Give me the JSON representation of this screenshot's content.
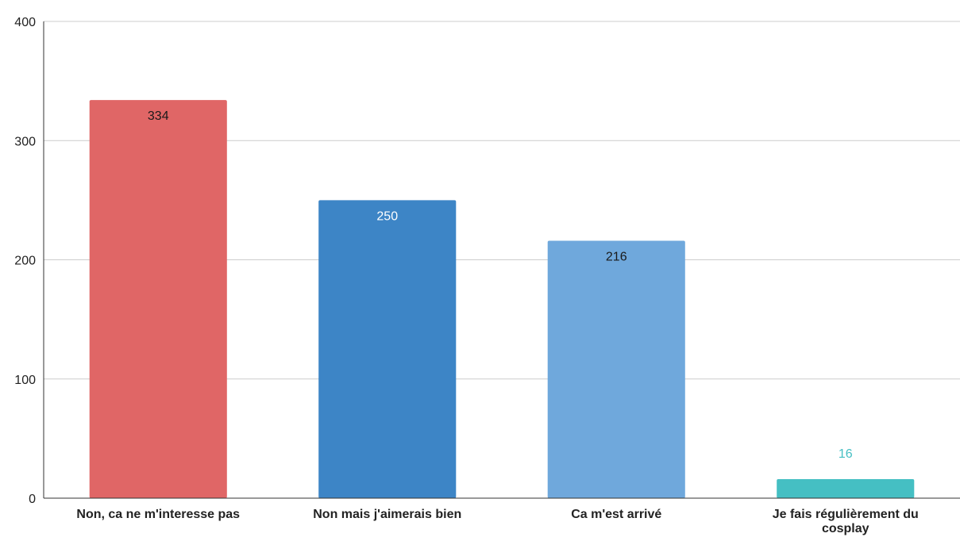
{
  "chart_data": {
    "type": "bar",
    "title": "",
    "xlabel": "",
    "ylabel": "",
    "ylim": [
      0,
      400
    ],
    "yticks": [
      0,
      100,
      200,
      300,
      400
    ],
    "grid": true,
    "legend": "none",
    "categories": [
      [
        "Non, ca ne m'interesse pas"
      ],
      [
        "Non mais j'aimerais bien"
      ],
      [
        "Ca m'est arrivé"
      ],
      [
        "Je fais régulièrement du",
        "cosplay"
      ]
    ],
    "values": [
      334,
      250,
      216,
      16
    ],
    "data_labels": [
      "334",
      "250",
      "216",
      "16"
    ],
    "colors": [
      "#e06666",
      "#3d85c6",
      "#6fa8dc",
      "#45bfc3"
    ],
    "label_colors": [
      "#1a1a1a",
      "#ffffff",
      "#1a1a1a",
      "#45bfc3"
    ],
    "label_position": [
      "inside",
      "inside",
      "inside",
      "outside"
    ],
    "gridline_color": "#cccccc",
    "axis_color": "#333333"
  }
}
